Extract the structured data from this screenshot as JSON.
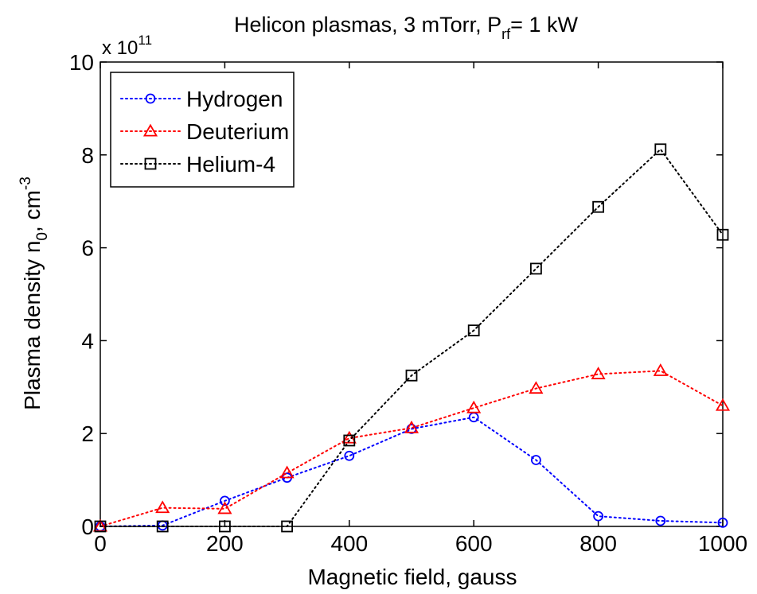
{
  "chart_data": {
    "type": "line",
    "title": {
      "main": "Helicon plasmas, 3 mTorr, P",
      "sub": "rf",
      "tail": "= 1 kW"
    },
    "xlabel": "Magnetic field, gauss",
    "ylabel": {
      "main": "Plasma density n",
      "sub": "0",
      "mid": ", cm",
      "sup": "-3"
    },
    "y_multiplier": {
      "prefix": "x 10",
      "exp": "11"
    },
    "xlim": [
      0,
      1000
    ],
    "ylim": [
      0,
      10
    ],
    "xticks": [
      "0",
      "200",
      "400",
      "600",
      "800",
      "1000"
    ],
    "yticks": [
      "0",
      "2",
      "4",
      "6",
      "8",
      "10"
    ],
    "legend_position": "top-left",
    "grid": false,
    "series": [
      {
        "name": "Hydrogen",
        "color": "#0000ff",
        "marker": "circle",
        "x": [
          0,
          100,
          200,
          300,
          400,
          500,
          600,
          700,
          800,
          900,
          1000
        ],
        "y": [
          0.0,
          0.02,
          0.55,
          1.05,
          1.52,
          2.1,
          2.35,
          1.43,
          0.22,
          0.12,
          0.08
        ]
      },
      {
        "name": "Deuterium",
        "color": "#ff0000",
        "marker": "triangle",
        "x": [
          0,
          100,
          200,
          300,
          400,
          500,
          600,
          700,
          800,
          900,
          1000
        ],
        "y": [
          0.0,
          0.4,
          0.38,
          1.15,
          1.9,
          2.12,
          2.55,
          2.97,
          3.28,
          3.35,
          2.6
        ]
      },
      {
        "name": "Helium-4",
        "color": "#000000",
        "marker": "square",
        "x": [
          0,
          100,
          200,
          300,
          400,
          500,
          600,
          700,
          800,
          900,
          1000
        ],
        "y": [
          0.0,
          0.0,
          0.0,
          0.0,
          1.85,
          3.25,
          4.22,
          5.55,
          6.88,
          8.12,
          6.28
        ]
      }
    ]
  }
}
